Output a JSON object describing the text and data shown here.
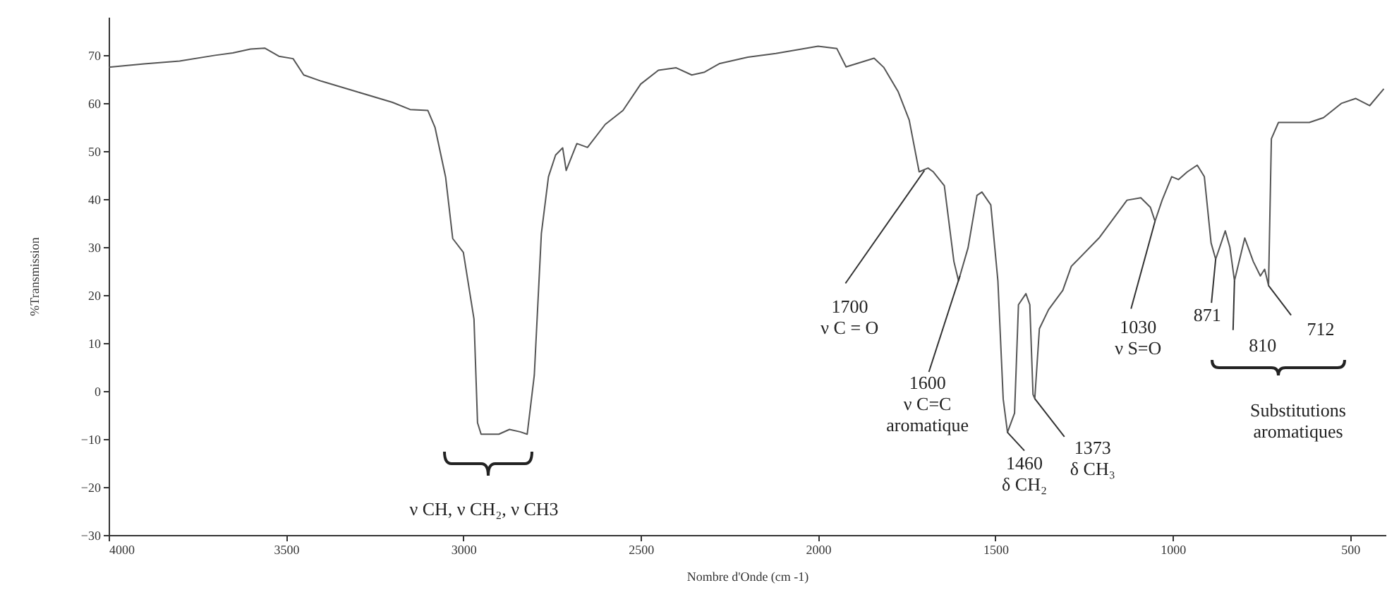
{
  "chart_data": {
    "type": "line",
    "xlabel": "Nombre d'Onde (cm        -1)",
    "ylabel": "%Transmission",
    "xlim": [
      4000,
      400
    ],
    "ylim": [
      -30,
      78
    ],
    "xticks": [
      4000,
      3500,
      3000,
      2500,
      2000,
      1500,
      1000,
      500
    ],
    "yticks": [
      -30,
      -20,
      -10,
      0,
      10,
      20,
      30,
      40,
      50,
      60,
      70
    ],
    "grid": false,
    "marker": "none",
    "line_style": "solid",
    "series": [
      {
        "color": "#555555",
        "x": [
          4000,
          3900,
          3800,
          3700,
          3650,
          3600,
          3560,
          3520,
          3480,
          3450,
          3400,
          3300,
          3200,
          3150,
          3100,
          3080,
          3050,
          3030,
          3000,
          2970,
          2960,
          2950,
          2900,
          2870,
          2840,
          2820,
          2800,
          2780,
          2760,
          2740,
          2720,
          2710,
          2680,
          2650,
          2600,
          2550,
          2500,
          2450,
          2400,
          2356,
          2320,
          2277,
          2198,
          2119,
          2000,
          1947,
          1921,
          1842,
          1815,
          1774,
          1743,
          1715,
          1690,
          1675,
          1644,
          1617,
          1604,
          1577,
          1552,
          1538,
          1513,
          1493,
          1478,
          1466,
          1446,
          1435,
          1414,
          1403,
          1394,
          1389,
          1376,
          1350,
          1310,
          1286,
          1208,
          1169,
          1129,
          1090,
          1063,
          1050,
          1030,
          1003,
          984,
          959,
          931,
          911,
          892,
          879,
          852,
          839,
          826,
          797,
          773,
          753,
          741,
          730,
          722,
          702,
          615,
          575,
          524,
          484,
          445,
          405
        ],
        "values": [
          67.5,
          68.2,
          68.8,
          70,
          70.5,
          71.3,
          71.5,
          69.8,
          69.3,
          65.9,
          64.6,
          62.4,
          60.2,
          58.7,
          58.5,
          55,
          44.6,
          31.8,
          28.9,
          15,
          -6.6,
          -9,
          -9,
          -8,
          -8.5,
          -9,
          3.3,
          32.9,
          44.7,
          49.2,
          50.7,
          46,
          51.6,
          50.8,
          55.6,
          58.5,
          64,
          66.9,
          67.4,
          65.9,
          66.5,
          68.3,
          69.6,
          70.4,
          71.9,
          71.4,
          67.6,
          69.4,
          67.5,
          62.4,
          56.5,
          45.7,
          46.5,
          45.7,
          42.8,
          27,
          23,
          29.9,
          40.8,
          41.5,
          38.8,
          23,
          -1.7,
          -8.6,
          -4.6,
          18,
          20.3,
          18,
          -0.7,
          -1.6,
          13,
          17,
          21,
          26,
          31.9,
          35.8,
          39.8,
          40.3,
          38.3,
          35.4,
          39.8,
          44.7,
          44.1,
          45.7,
          47.1,
          44.7,
          30.9,
          27.5,
          33.4,
          30,
          23,
          31.9,
          27,
          24,
          25.4,
          22,
          52.6,
          56,
          56,
          57,
          60,
          61,
          59.5,
          63
        ]
      }
    ],
    "annotations": [
      "ν  CH, ν  CH₂, ν CH3",
      {
        "text": "1700\nν C = O",
        "x": 1700,
        "y": 46
      },
      {
        "text": "1600\nν C=C\naromatique",
        "x": 1600,
        "y": 24
      },
      {
        "text": "1460\nδ CH₂",
        "x": 1466,
        "y": -8.6
      },
      {
        "text": "1373\nδ CH₃",
        "x": 1389,
        "y": -1.6
      },
      {
        "text": "1030\nν S=O",
        "x": 1050,
        "y": 35.4
      },
      {
        "text": "871",
        "x": 879,
        "y": 27.5
      },
      {
        "text": "810",
        "x": 826,
        "y": 23
      },
      {
        "text": "712",
        "x": 730,
        "y": 22
      },
      "Substitutions\naromatiques"
    ]
  }
}
